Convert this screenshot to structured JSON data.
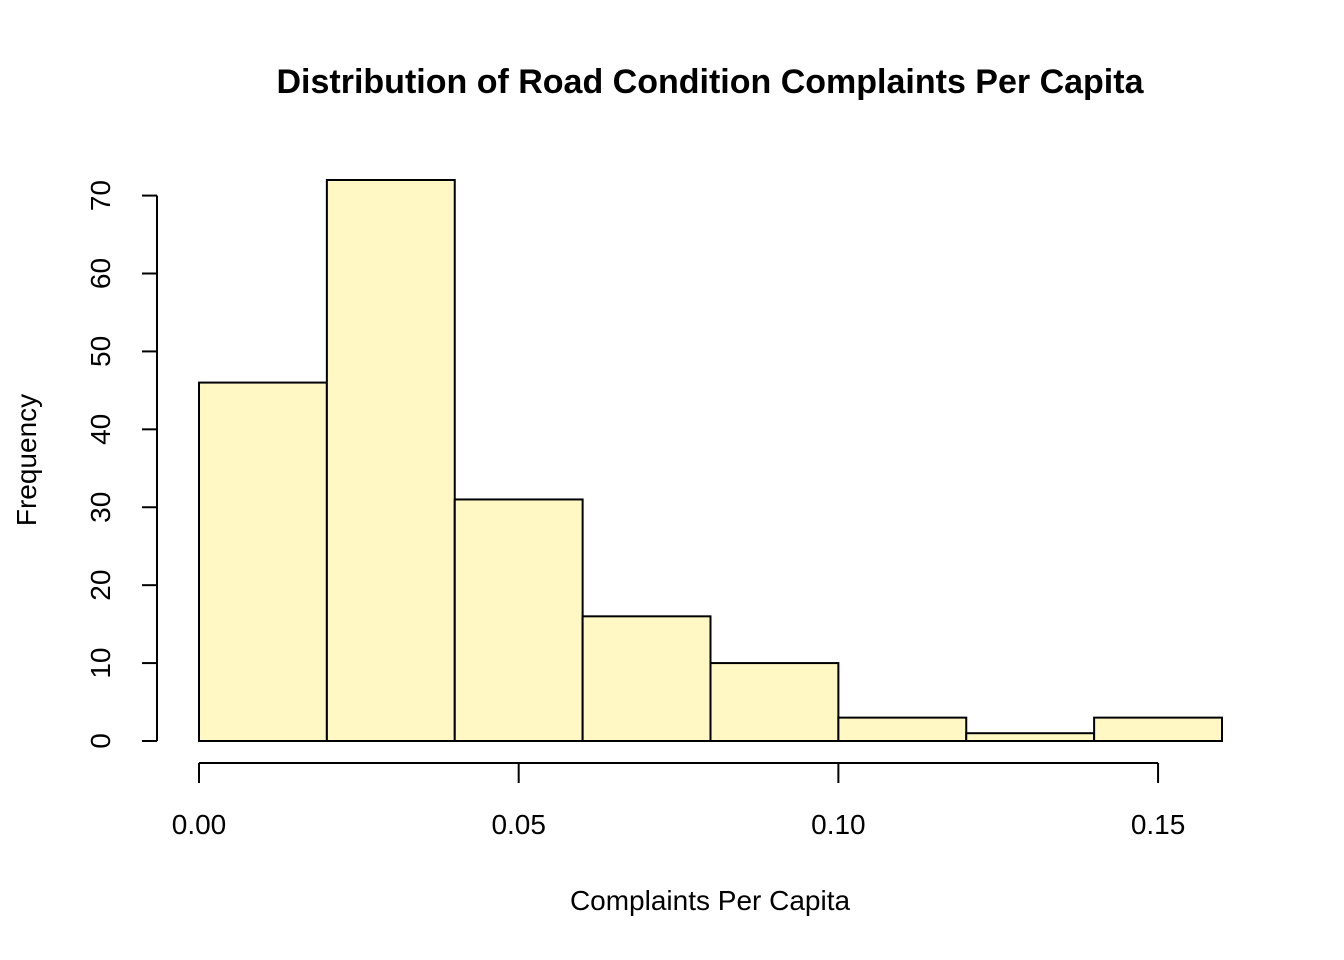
{
  "chart_data": {
    "type": "bar",
    "title": "Distribution of Road Condition Complaints Per Capita",
    "xlabel": "Complaints Per Capita",
    "ylabel": "Frequency",
    "bar_color": "#FFF8C4",
    "bin_edges": [
      0.0,
      0.02,
      0.04,
      0.06,
      0.08,
      0.1,
      0.12,
      0.14,
      0.16
    ],
    "values": [
      46,
      72,
      31,
      16,
      10,
      3,
      1,
      3
    ],
    "xlim": [
      0.0,
      0.16
    ],
    "ylim": [
      0,
      72
    ],
    "x_ticks": [
      {
        "value": 0.0,
        "label": "0.00"
      },
      {
        "value": 0.05,
        "label": "0.05"
      },
      {
        "value": 0.1,
        "label": "0.10"
      },
      {
        "value": 0.15,
        "label": "0.15"
      }
    ],
    "y_ticks": [
      {
        "value": 0,
        "label": "0"
      },
      {
        "value": 10,
        "label": "10"
      },
      {
        "value": 20,
        "label": "20"
      },
      {
        "value": 30,
        "label": "30"
      },
      {
        "value": 40,
        "label": "40"
      },
      {
        "value": 50,
        "label": "50"
      },
      {
        "value": 60,
        "label": "60"
      },
      {
        "value": 70,
        "label": "70"
      }
    ],
    "grid": false,
    "legend": "none"
  }
}
